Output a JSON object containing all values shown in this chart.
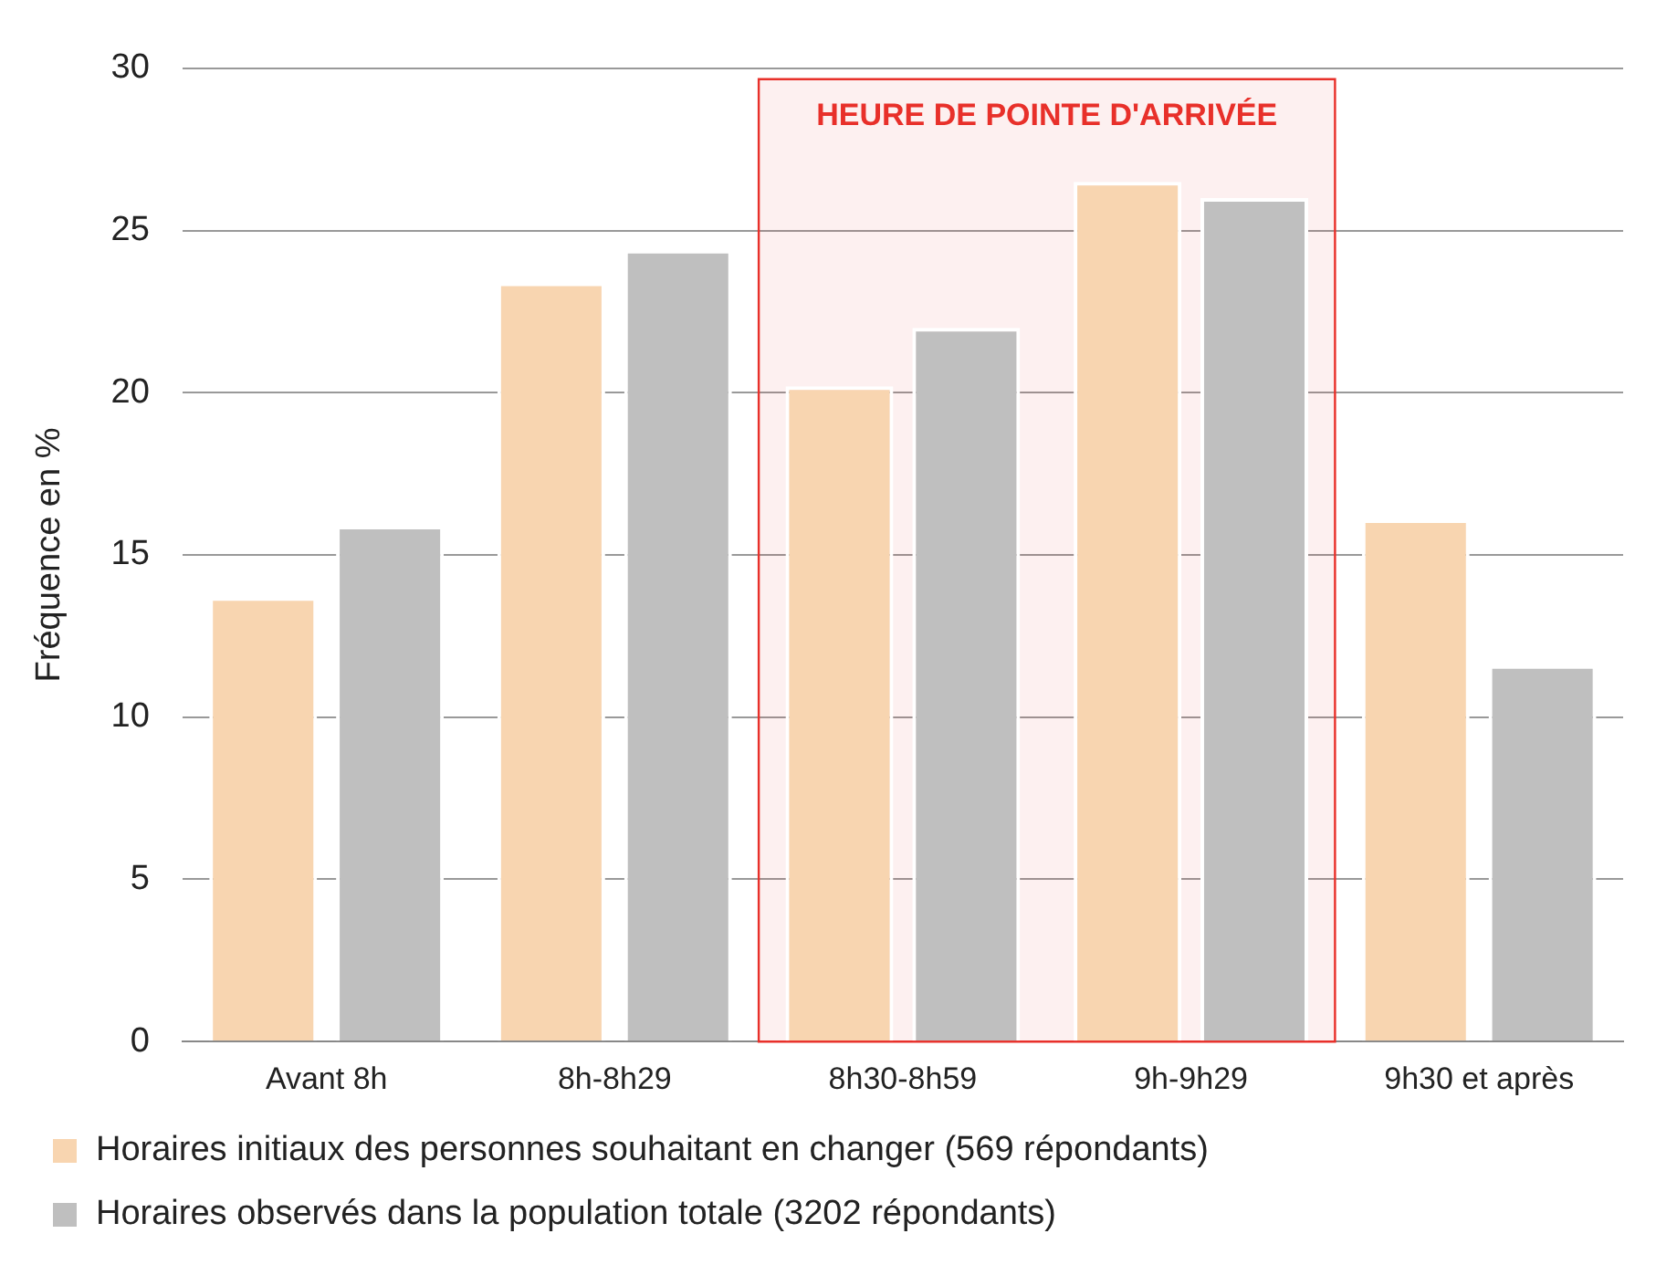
{
  "chart_data": {
    "type": "bar",
    "ylabel": "Fréquence en %",
    "categories": [
      "Avant 8h",
      "8h-8h29",
      "8h30-8h59",
      "9h-9h29",
      "9h30 et après"
    ],
    "series": [
      {
        "name": "Horaires initiaux des personnes souhaitant en changer (569 répondants)",
        "color": "#f8d5b0",
        "values": [
          13.7,
          23.4,
          20.2,
          26.5,
          16.1
        ]
      },
      {
        "name": "Horaires observés dans la population totale (3202 répondants)",
        "color": "#bfbfbf",
        "values": [
          15.9,
          24.4,
          22.0,
          26.0,
          11.6
        ]
      }
    ],
    "ylim": [
      0,
      30
    ],
    "yticks": [
      0,
      5,
      10,
      15,
      20,
      25,
      30
    ],
    "grid": "y",
    "legend": "bottom",
    "bands": [
      {
        "axis": "x",
        "from": "8h30-8h59",
        "to": "9h-9h29",
        "label": "HEURE DE POINTE D'ARRIVÉE",
        "color": "#e8302a"
      }
    ]
  }
}
